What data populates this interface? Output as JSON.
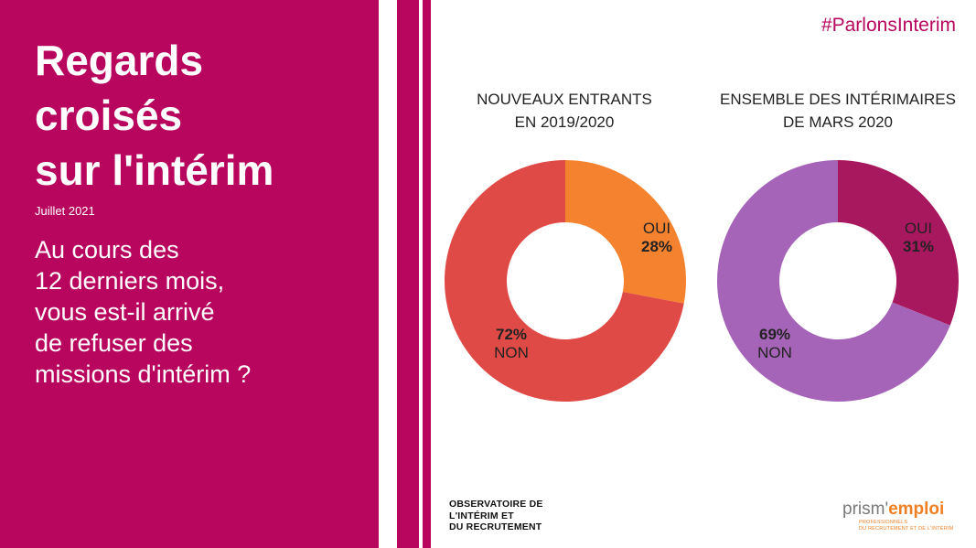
{
  "header": {
    "title_lines": [
      "Regards",
      "croisés",
      "sur l'intérim"
    ],
    "date": "Juillet 2021",
    "question_lines": [
      "Au cours des",
      "12 derniers mois,",
      "vous est-il arrivé",
      "de refuser des",
      "missions d'intérim ?"
    ],
    "hashtag": "#ParlonsInterim"
  },
  "colors": {
    "brand": "#b8065f",
    "chart1_oui": "#f5822e",
    "chart1_non": "#e04a46",
    "chart2_oui": "#a8185e",
    "chart2_non": "#a564b7"
  },
  "chart_data": [
    {
      "type": "pie",
      "title_lines": [
        "NOUVEAUX ENTRANTS",
        "EN 2019/2020"
      ],
      "categories": [
        "OUI",
        "NON"
      ],
      "values": [
        28,
        72
      ],
      "labels": [
        "28%",
        "72%"
      ]
    },
    {
      "type": "pie",
      "title_lines": [
        "ENSEMBLE DES INTÉRIMAIRES",
        "DE MARS 2020"
      ],
      "categories": [
        "OUI",
        "NON"
      ],
      "values": [
        31,
        69
      ],
      "labels": [
        "31%",
        "69%"
      ]
    }
  ],
  "footer": {
    "observatoire_lines": [
      "OBSERVATOIRE DE",
      "L'INTÉRIM ET",
      "DU RECRUTEMENT"
    ],
    "prism_brand_a": "prism'",
    "prism_brand_b": "emploi",
    "prism_tagline_lines": [
      "PROFESSIONNELS",
      "DU RECRUTEMENT ET DE L'INTÉRIM"
    ]
  }
}
